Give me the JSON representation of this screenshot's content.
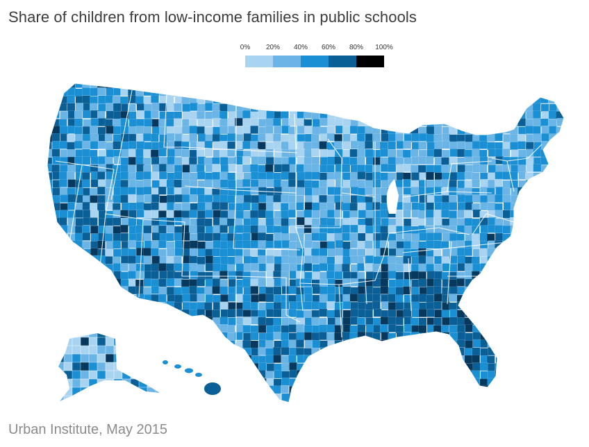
{
  "title": "Share of children from low-income families in public schools",
  "legend": {
    "labels": [
      "0%",
      "20%",
      "40%",
      "60%",
      "80%",
      "100%"
    ],
    "colors": [
      "#a9d4f1",
      "#6ab5e6",
      "#1b8fd3",
      "#0a5f96",
      "#06395d"
    ],
    "top_color": "#000000"
  },
  "map": {
    "type": "choropleth",
    "region": "United States counties",
    "bins": [
      "0–20%",
      "20–40%",
      "40–60%",
      "60–80%",
      "80–100%"
    ],
    "state_border_color": "#ffffff",
    "no_data_color": "#9e9e9e"
  },
  "source": "Urban Institute, May 2015"
}
